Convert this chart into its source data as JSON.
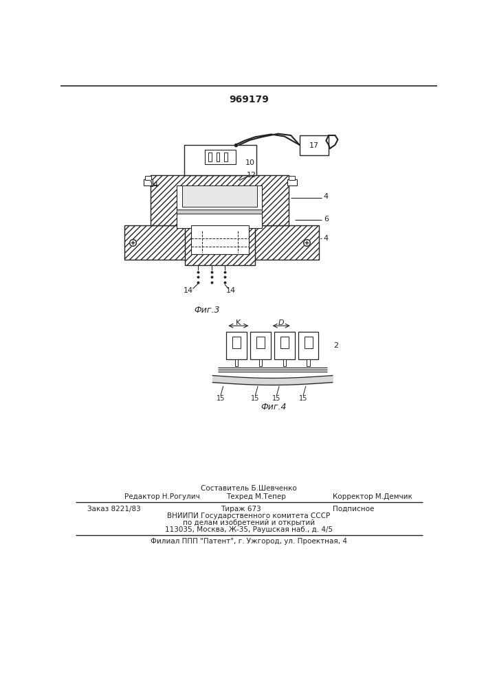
{
  "patent_number": "969179",
  "bg_color": "#ffffff",
  "line_color": "#222222",
  "fig3_label": "Фиг.3",
  "fig4_label": "Фиг.4",
  "footer_col1_line1": "Редактор Н.Рогулич",
  "footer_col2_line0": "Составитель Б.Шевченко",
  "footer_col2_line1": "Техред М.Тепер",
  "footer_col3_line1": "Корректор М.Демчик",
  "footer_order": "Заказ 8221/83",
  "footer_tirazh": "Тираж 673",
  "footer_podp": "Подписное",
  "footer_vniip1": "ВНИИПИ Государственного комитета СССР",
  "footer_vniip2": "по делам изобретений и открытий",
  "footer_vniip3": "113035, Москва, Ж-35, Раушская наб., д. 4/5",
  "footer_filial": "Филиал ППП \"Патент\", г. Ужгород, ул. Проектная, 4"
}
